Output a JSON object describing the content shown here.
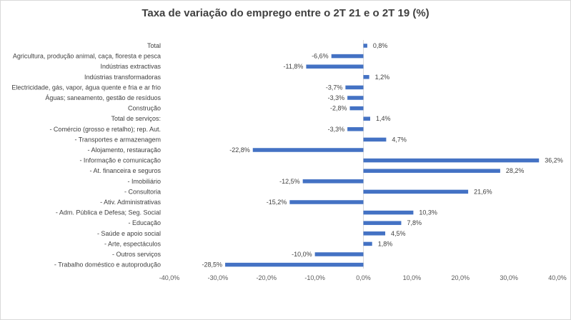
{
  "chart_data": {
    "type": "bar",
    "orientation": "horizontal",
    "title": "Taxa de variação do emprego entre o 2T 21 e o 2T 19 (%)",
    "xlabel": "",
    "ylabel": "",
    "xlim": [
      -40,
      40
    ],
    "grid": false,
    "bar_color": "#4472c4",
    "categories": [
      "Total",
      "Agricultura, produção animal, caça, floresta e pesca",
      "Indústrias extractivas",
      "Indústrias transformadoras",
      "Electricidade, gás, vapor, água quente e fria e ar frio",
      "Águas; saneamento, gestão de resíduos",
      "Construção",
      "Total de serviços:",
      "- Comércio (grosso e retalho); rep. Aut.",
      "- Transportes e armazenagem",
      "- Alojamento, restauração",
      "- Informação e comunicação",
      "- At. financeira e seguros",
      "- Imobiliário",
      "- Consultoria",
      "- Ativ. Administrativas",
      "- Adm. Pública e Defesa; Seg. Social",
      "- Educação",
      "- Saúde e apoio social",
      "- Arte, espectáculos",
      "- Outros serviços",
      "- Trabalho doméstico e autoprodução"
    ],
    "values": [
      0.8,
      -6.6,
      -11.8,
      1.2,
      -3.7,
      -3.3,
      -2.8,
      1.4,
      -3.3,
      4.7,
      -22.8,
      36.2,
      28.2,
      -12.5,
      21.6,
      -15.2,
      10.3,
      7.8,
      4.5,
      1.8,
      -10.0,
      -28.5
    ],
    "data_labels": [
      "0,8%",
      "-6,6%",
      "-11,8%",
      "1,2%",
      "-3,7%",
      "-3,3%",
      "-2,8%",
      "1,4%",
      "-3,3%",
      "4,7%",
      "-22,8%",
      "36,2%",
      "28,2%",
      "-12,5%",
      "21,6%",
      "-15,2%",
      "10,3%",
      "7,8%",
      "4,5%",
      "1,8%",
      "-10,0%",
      "-28,5%"
    ],
    "x_ticks": [
      -40,
      -30,
      -20,
      -10,
      0,
      10,
      20,
      30,
      40
    ],
    "x_tick_labels": [
      "-40,0%",
      "-30,0%",
      "-20,0%",
      "-10,0%",
      "0,0%",
      "10,0%",
      "20,0%",
      "30,0%",
      "40,0%"
    ]
  }
}
